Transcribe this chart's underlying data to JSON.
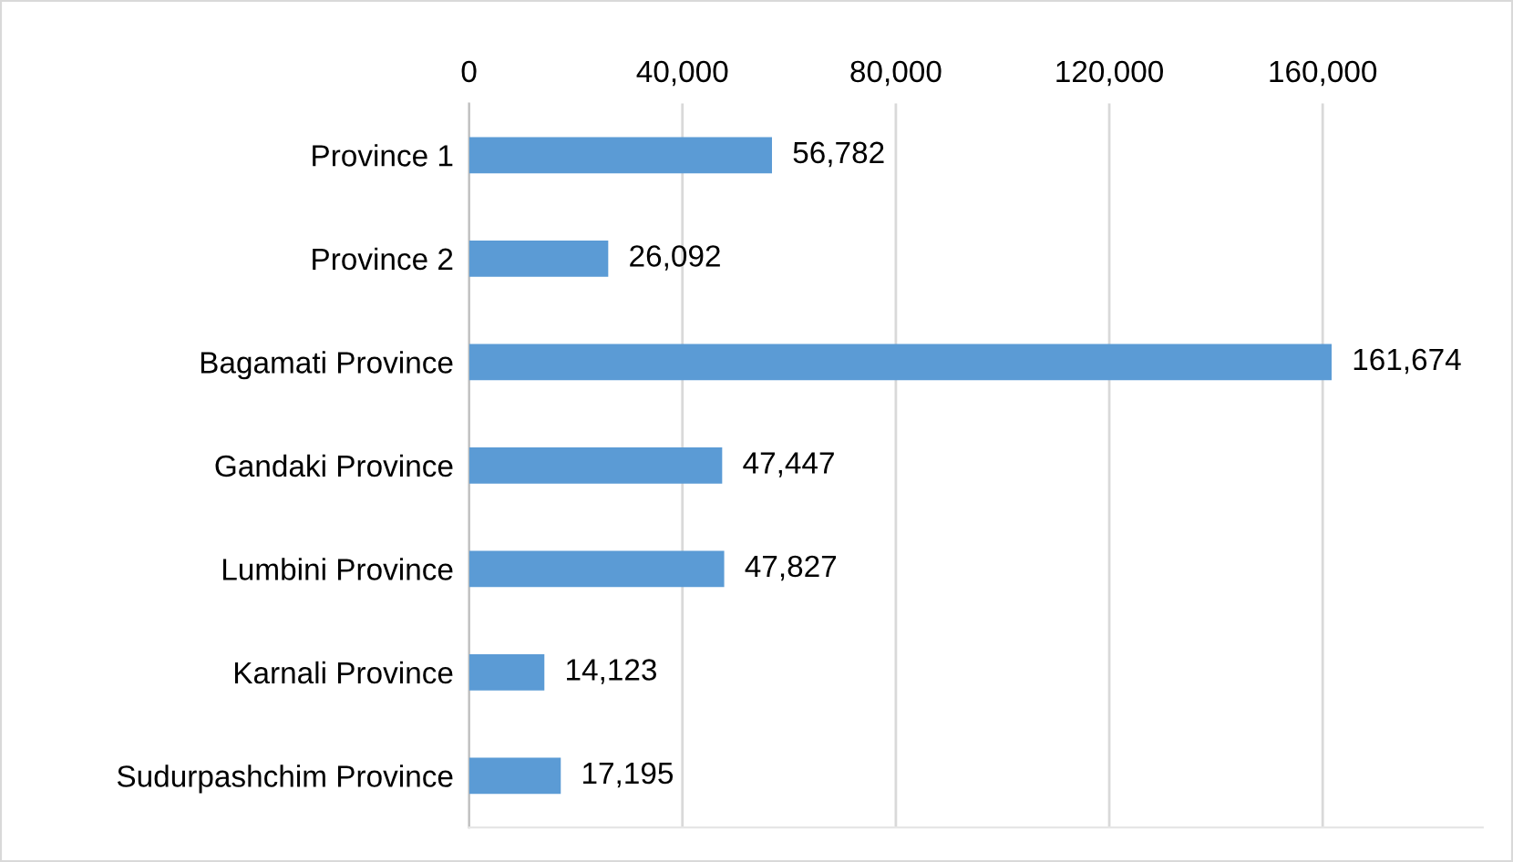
{
  "chart_data": {
    "type": "bar",
    "orientation": "horizontal",
    "categories": [
      "Province 1",
      "Province 2",
      "Bagamati Province",
      "Gandaki Province",
      "Lumbini Province",
      "Karnali Province",
      "Sudurpashchim Province"
    ],
    "values": [
      56782,
      26092,
      161674,
      47447,
      47827,
      14123,
      17195
    ],
    "color": "#5b9bd5",
    "data_labels": true,
    "value_labels": [
      "56,782",
      "26,092",
      "161,674",
      "47,447",
      "47,827",
      "14,123",
      "17,195"
    ],
    "xlim": [
      0,
      190000
    ],
    "xticks": [
      {
        "value": 0,
        "label": "0"
      },
      {
        "value": 40000,
        "label": "40,000"
      },
      {
        "value": 80000,
        "label": "80,000"
      },
      {
        "value": 120000,
        "label": "120,000"
      },
      {
        "value": 160000,
        "label": "160,000"
      }
    ],
    "grid": "x"
  }
}
